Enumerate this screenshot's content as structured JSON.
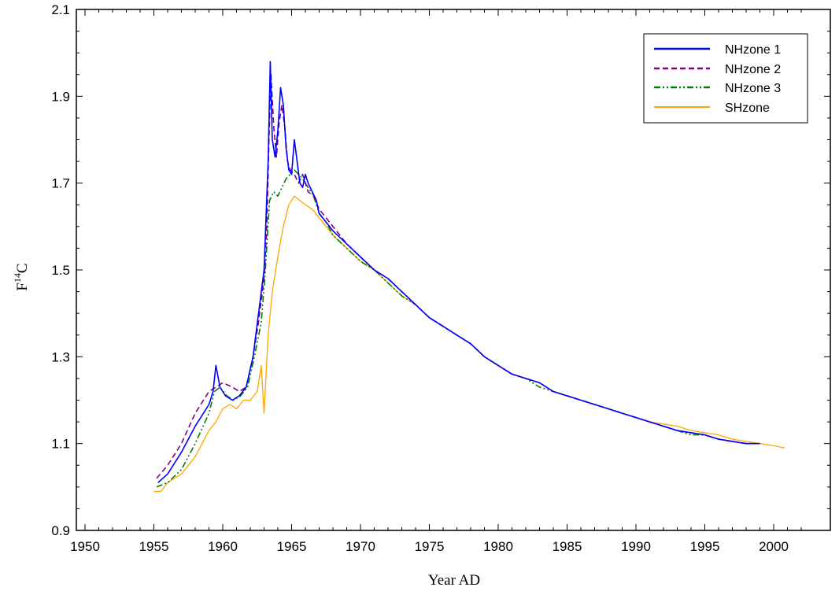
{
  "chart_data": {
    "type": "line",
    "title": "",
    "xlabel": "Year AD",
    "ylabel_main": "F",
    "ylabel_sup": "14",
    "ylabel_tail": "C",
    "xlim": [
      1950,
      2002
    ],
    "ylim": [
      0.9,
      2.1
    ],
    "x_ticks": [
      1950,
      1955,
      1960,
      1965,
      1970,
      1975,
      1980,
      1985,
      1990,
      1995,
      2000
    ],
    "y_ticks": [
      0.9,
      1.1,
      1.3,
      1.5,
      1.7,
      1.9,
      2.1
    ],
    "y_tick_labels": [
      "0.9",
      "1.1",
      "1.3",
      "1.5",
      "1.7",
      "1.9",
      "2.1"
    ],
    "x_tick_labels": [
      "1950",
      "1955",
      "1960",
      "1965",
      "1970",
      "1975",
      "1980",
      "1985",
      "1990",
      "1995",
      "2000"
    ],
    "grid": false,
    "legend_position": "top-right",
    "series": [
      {
        "name": "NHzone 1",
        "color": "#0000ff",
        "dash": "solid",
        "x": [
          1955.3,
          1956.0,
          1957.0,
          1958.0,
          1959.0,
          1959.3,
          1959.5,
          1959.8,
          1960.2,
          1960.7,
          1961.2,
          1961.7,
          1962.2,
          1962.6,
          1963.0,
          1963.3,
          1963.45,
          1963.6,
          1963.8,
          1964.0,
          1964.2,
          1964.4,
          1964.6,
          1964.8,
          1965.0,
          1965.2,
          1965.4,
          1965.6,
          1965.8,
          1966.0,
          1966.2,
          1966.5,
          1966.8,
          1967.0,
          1967.5,
          1968.0,
          1969.0,
          1970.0,
          1971.0,
          1972.0,
          1973.0,
          1974.0,
          1975.0,
          1976.0,
          1977.0,
          1978.0,
          1979.0,
          1980.0,
          1981.0,
          1982.0,
          1983.0,
          1984.0,
          1985.0,
          1986.0,
          1987.0,
          1988.0,
          1989.0,
          1990.0,
          1991.0,
          1992.0,
          1993.0,
          1994.0,
          1995.0,
          1996.0,
          1997.0,
          1998.0,
          1999.0
        ],
        "y": [
          1.01,
          1.03,
          1.08,
          1.14,
          1.19,
          1.22,
          1.28,
          1.23,
          1.21,
          1.2,
          1.21,
          1.23,
          1.3,
          1.4,
          1.5,
          1.75,
          1.98,
          1.8,
          1.76,
          1.82,
          1.92,
          1.88,
          1.78,
          1.73,
          1.72,
          1.8,
          1.75,
          1.7,
          1.69,
          1.72,
          1.7,
          1.68,
          1.66,
          1.63,
          1.61,
          1.59,
          1.56,
          1.53,
          1.5,
          1.48,
          1.45,
          1.42,
          1.39,
          1.37,
          1.35,
          1.33,
          1.3,
          1.28,
          1.26,
          1.25,
          1.24,
          1.22,
          1.21,
          1.2,
          1.19,
          1.18,
          1.17,
          1.16,
          1.15,
          1.14,
          1.13,
          1.125,
          1.12,
          1.11,
          1.105,
          1.1,
          1.1
        ]
      },
      {
        "name": "NHzone 2",
        "color": "#800080",
        "dash": "dashed",
        "x": [
          1955.2,
          1956.0,
          1957.0,
          1958.0,
          1959.0,
          1959.5,
          1960.0,
          1960.7,
          1961.2,
          1961.7,
          1962.2,
          1962.6,
          1963.0,
          1963.2,
          1963.4,
          1963.5,
          1963.7,
          1963.9,
          1964.1,
          1964.3,
          1964.5,
          1964.7,
          1964.9,
          1965.2,
          1965.5,
          1965.8,
          1966.2,
          1966.6,
          1967.0,
          1967.5,
          1968.0,
          1969.0,
          1970.0,
          1971.0,
          1972.0,
          1973.0,
          1974.0,
          1975.0,
          1976.0,
          1977.0,
          1978.0,
          1979.0,
          1980.0,
          1981.0,
          1982.0,
          1983.0,
          1984.0,
          1985.0,
          1986.0,
          1987.0,
          1988.0,
          1989.0,
          1990.0,
          1991.0,
          1992.0,
          1993.0,
          1994.0,
          1995.0,
          1996.0,
          1997.0,
          1998.0,
          1999.0
        ],
        "y": [
          1.02,
          1.05,
          1.1,
          1.17,
          1.22,
          1.23,
          1.24,
          1.23,
          1.22,
          1.23,
          1.3,
          1.38,
          1.48,
          1.6,
          1.85,
          1.95,
          1.83,
          1.76,
          1.84,
          1.88,
          1.83,
          1.75,
          1.73,
          1.72,
          1.7,
          1.72,
          1.68,
          1.67,
          1.64,
          1.62,
          1.6,
          1.56,
          1.53,
          1.5,
          1.48,
          1.45,
          1.42,
          1.39,
          1.37,
          1.35,
          1.33,
          1.3,
          1.28,
          1.26,
          1.25,
          1.24,
          1.22,
          1.21,
          1.2,
          1.19,
          1.18,
          1.17,
          1.16,
          1.15,
          1.14,
          1.13,
          1.125,
          1.12,
          1.11,
          1.105,
          1.1,
          1.1
        ]
      },
      {
        "name": "NHzone 3",
        "color": "#008000",
        "dash": "dashdotdot",
        "x": [
          1955.2,
          1956.0,
          1957.0,
          1958.0,
          1959.0,
          1959.4,
          1959.8,
          1960.3,
          1960.8,
          1961.3,
          1961.8,
          1962.3,
          1962.8,
          1963.1,
          1963.4,
          1963.7,
          1964.0,
          1964.3,
          1964.6,
          1964.9,
          1965.2,
          1965.5,
          1965.8,
          1966.2,
          1966.6,
          1967.0,
          1967.5,
          1968.0,
          1969.0,
          1970.0,
          1971.0,
          1972.0,
          1973.0,
          1974.0,
          1975.0,
          1976.0,
          1977.0,
          1978.0,
          1979.0,
          1980.0,
          1981.0,
          1982.0,
          1983.0,
          1984.0,
          1985.0,
          1986.0,
          1987.0,
          1988.0,
          1989.0,
          1990.0,
          1991.0,
          1992.0,
          1993.0,
          1994.0,
          1995.0,
          1996.0,
          1997.0,
          1998.0,
          1999.0
        ],
        "y": [
          1.0,
          1.01,
          1.04,
          1.1,
          1.17,
          1.22,
          1.23,
          1.21,
          1.2,
          1.21,
          1.23,
          1.3,
          1.38,
          1.5,
          1.66,
          1.68,
          1.67,
          1.69,
          1.71,
          1.72,
          1.73,
          1.72,
          1.71,
          1.69,
          1.67,
          1.63,
          1.61,
          1.58,
          1.55,
          1.52,
          1.5,
          1.47,
          1.44,
          1.42,
          1.39,
          1.37,
          1.35,
          1.33,
          1.3,
          1.28,
          1.26,
          1.25,
          1.23,
          1.22,
          1.21,
          1.2,
          1.19,
          1.18,
          1.17,
          1.16,
          1.15,
          1.14,
          1.13,
          1.12,
          1.12,
          1.11,
          1.105,
          1.1,
          1.1
        ]
      },
      {
        "name": "SHzone",
        "color": "#ffa500",
        "dash": "solid",
        "x": [
          1955.0,
          1955.5,
          1956.0,
          1957.0,
          1958.0,
          1958.5,
          1959.0,
          1959.5,
          1960.0,
          1960.5,
          1961.0,
          1961.5,
          1962.0,
          1962.5,
          1962.8,
          1963.0,
          1963.3,
          1963.6,
          1964.0,
          1964.4,
          1964.8,
          1965.2,
          1965.6,
          1966.0,
          1966.5,
          1967.0,
          1967.5,
          1968.0,
          1969.0,
          1970.0,
          1971.0,
          1972.0,
          1973.0,
          1974.0,
          1975.0,
          1976.0,
          1977.0,
          1978.0,
          1979.0,
          1980.0,
          1981.0,
          1982.0,
          1983.0,
          1984.0,
          1985.0,
          1986.0,
          1987.0,
          1988.0,
          1989.0,
          1990.0,
          1991.0,
          1992.0,
          1993.0,
          1994.0,
          1995.0,
          1996.0,
          1997.0,
          1998.0,
          1999.0,
          2000.0,
          2000.8
        ],
        "y": [
          0.99,
          0.99,
          1.01,
          1.03,
          1.07,
          1.1,
          1.13,
          1.15,
          1.18,
          1.19,
          1.18,
          1.2,
          1.2,
          1.22,
          1.28,
          1.17,
          1.35,
          1.45,
          1.53,
          1.6,
          1.65,
          1.67,
          1.66,
          1.65,
          1.64,
          1.62,
          1.6,
          1.58,
          1.55,
          1.52,
          1.5,
          1.47,
          1.44,
          1.42,
          1.39,
          1.37,
          1.35,
          1.33,
          1.3,
          1.28,
          1.26,
          1.25,
          1.24,
          1.22,
          1.21,
          1.2,
          1.19,
          1.18,
          1.17,
          1.16,
          1.15,
          1.145,
          1.14,
          1.13,
          1.125,
          1.12,
          1.11,
          1.105,
          1.1,
          1.095,
          1.09
        ]
      }
    ]
  }
}
